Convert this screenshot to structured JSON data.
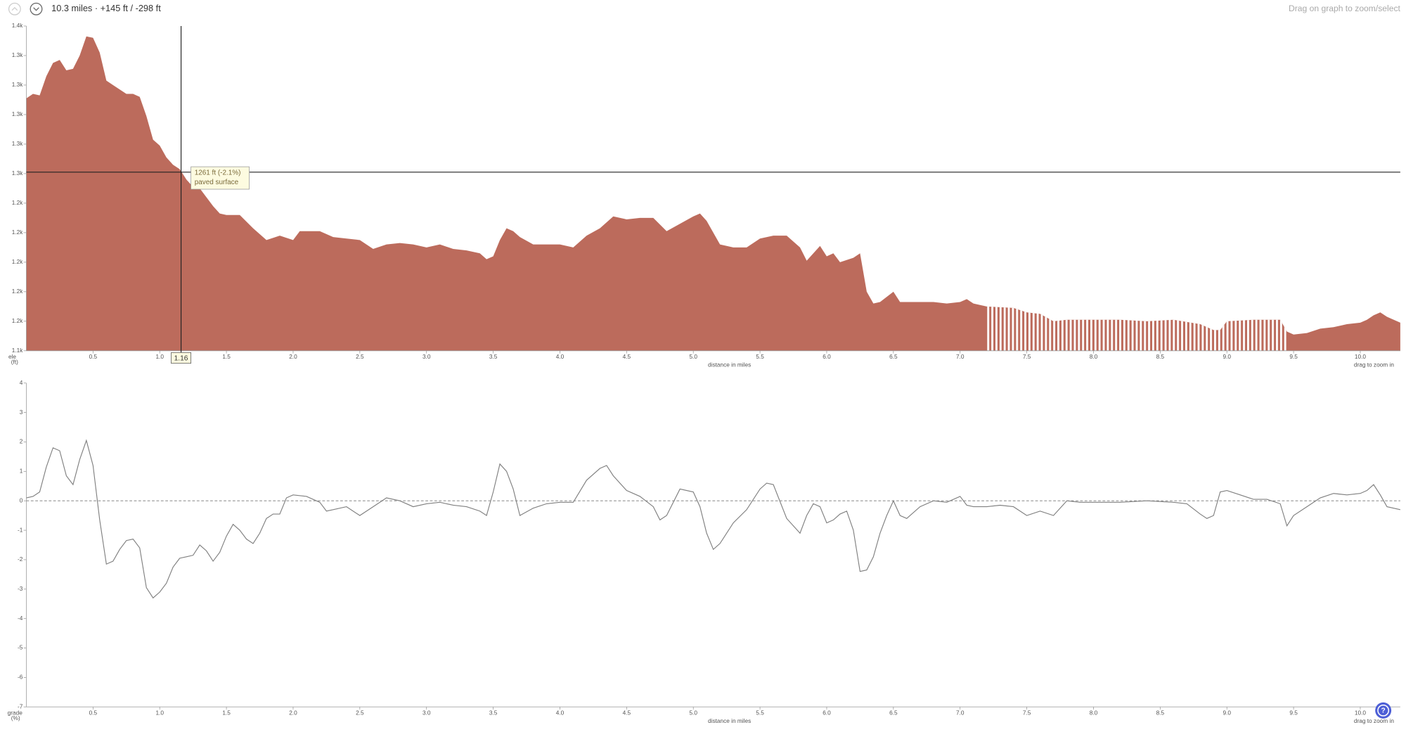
{
  "header": {
    "summary": "10.3 miles · +145 ft / -298 ft",
    "hint": "Drag on graph to zoom/select",
    "help": "?"
  },
  "chart_data": [
    {
      "type": "area",
      "y_label": [
        "ele",
        "(ft)"
      ],
      "x_label": "distance in miles",
      "zoom_hint": "drag to zoom in",
      "color": "#bc6b5c",
      "xlim": [
        0,
        10.3
      ],
      "ylim": [
        1140,
        1360
      ],
      "xticks": [
        0.5,
        {
          "value": 1,
          "label": "1.0"
        },
        1.5,
        {
          "value": 2,
          "label": "2.0"
        },
        2.5,
        {
          "value": 3,
          "label": "3.0"
        },
        3.5,
        {
          "value": 4,
          "label": "4.0"
        },
        4.5,
        {
          "value": 5,
          "label": "5.0"
        },
        5.5,
        {
          "value": 6,
          "label": "6.0"
        },
        6.5,
        {
          "value": 7,
          "label": "7.0"
        },
        7.5,
        {
          "value": 8,
          "label": "8.0"
        },
        8.5,
        {
          "value": 9,
          "label": "9.0"
        },
        9.5,
        {
          "value": 10,
          "label": "10.0"
        }
      ],
      "yticks": [
        {
          "value": 1140,
          "label": "1.1k"
        },
        {
          "value": 1160,
          "label": "1.2k"
        },
        {
          "value": 1180,
          "label": "1.2k"
        },
        {
          "value": 1200,
          "label": "1.2k"
        },
        {
          "value": 1220,
          "label": "1.2k"
        },
        {
          "value": 1240,
          "label": "1.2k"
        },
        {
          "value": 1260,
          "label": "1.3k"
        },
        {
          "value": 1280,
          "label": "1.3k"
        },
        {
          "value": 1300,
          "label": "1.3k"
        },
        {
          "value": 1320,
          "label": "1.3k"
        },
        {
          "value": 1340,
          "label": "1.3k"
        },
        {
          "value": 1360,
          "label": "1.4k"
        }
      ],
      "unpaved_range": [
        7.2,
        9.45
      ],
      "crosshair": {
        "x": 1.16,
        "y": 1261,
        "tooltip": [
          "1261 ft (-2.1%)",
          "paved surface"
        ]
      },
      "x": [
        0,
        0.05,
        0.1,
        0.15,
        0.2,
        0.25,
        0.3,
        0.35,
        0.4,
        0.45,
        0.5,
        0.55,
        0.6,
        0.65,
        0.7,
        0.75,
        0.8,
        0.85,
        0.9,
        0.95,
        1.0,
        1.05,
        1.1,
        1.15,
        1.2,
        1.25,
        1.3,
        1.35,
        1.4,
        1.45,
        1.5,
        1.6,
        1.7,
        1.8,
        1.9,
        2.0,
        2.05,
        2.2,
        2.3,
        2.4,
        2.5,
        2.6,
        2.7,
        2.8,
        2.9,
        3.0,
        3.1,
        3.2,
        3.3,
        3.4,
        3.45,
        3.5,
        3.55,
        3.6,
        3.65,
        3.7,
        3.8,
        3.9,
        4.0,
        4.1,
        4.2,
        4.3,
        4.4,
        4.5,
        4.6,
        4.7,
        4.8,
        4.9,
        5.0,
        5.05,
        5.1,
        5.2,
        5.3,
        5.4,
        5.5,
        5.6,
        5.7,
        5.8,
        5.85,
        5.9,
        5.95,
        6.0,
        6.05,
        6.1,
        6.2,
        6.25,
        6.3,
        6.35,
        6.4,
        6.5,
        6.55,
        6.7,
        6.8,
        6.9,
        7.0,
        7.05,
        7.1,
        7.2,
        7.4,
        7.5,
        7.6,
        7.7,
        7.8,
        8.0,
        8.2,
        8.4,
        8.6,
        8.8,
        8.9,
        8.95,
        9.0,
        9.2,
        9.4,
        9.45,
        9.5,
        9.6,
        9.7,
        9.8,
        9.9,
        10.0,
        10.05,
        10.1,
        10.15,
        10.2,
        10.3
      ],
      "values": [
        1311,
        1314,
        1313,
        1326,
        1335,
        1337,
        1330,
        1331,
        1340,
        1353,
        1352,
        1342,
        1323,
        1320,
        1317,
        1314,
        1314,
        1312,
        1299,
        1283,
        1279,
        1271,
        1266,
        1263,
        1256,
        1251,
        1250,
        1244,
        1238,
        1233,
        1232,
        1232,
        1223,
        1215,
        1218,
        1215,
        1221,
        1221,
        1217,
        1216,
        1215,
        1209,
        1212,
        1213,
        1212,
        1210,
        1212,
        1209,
        1208,
        1206,
        1202,
        1204,
        1215,
        1223,
        1221,
        1217,
        1212,
        1212,
        1212,
        1210,
        1218,
        1223,
        1231,
        1229,
        1230,
        1230,
        1221,
        1226,
        1231,
        1233,
        1228,
        1212,
        1210,
        1210,
        1216,
        1218,
        1218,
        1210,
        1201,
        1206,
        1211,
        1204,
        1206,
        1200,
        1203,
        1206,
        1180,
        1172,
        1173,
        1180,
        1173,
        1173,
        1173,
        1172,
        1173,
        1175,
        1172,
        1170,
        1169,
        1166,
        1165,
        1160,
        1161,
        1161,
        1161,
        1160,
        1161,
        1158,
        1154,
        1154,
        1160,
        1161,
        1161,
        1153,
        1151,
        1152,
        1155,
        1156,
        1158,
        1159,
        1161,
        1164,
        1166,
        1163,
        1159
      ]
    },
    {
      "type": "line",
      "y_label": [
        "grade",
        "(%)"
      ],
      "x_label": "distance in miles",
      "zoom_hint": "drag to zoom in",
      "color": "#808080",
      "zero_line": true,
      "xlim": [
        0,
        10.3
      ],
      "ylim": [
        -7,
        4
      ],
      "xticks": [
        0.5,
        {
          "value": 1,
          "label": "1.0"
        },
        1.5,
        {
          "value": 2,
          "label": "2.0"
        },
        2.5,
        {
          "value": 3,
          "label": "3.0"
        },
        3.5,
        {
          "value": 4,
          "label": "4.0"
        },
        4.5,
        {
          "value": 5,
          "label": "5.0"
        },
        5.5,
        {
          "value": 6,
          "label": "6.0"
        },
        6.5,
        {
          "value": 7,
          "label": "7.0"
        },
        7.5,
        {
          "value": 8,
          "label": "8.0"
        },
        8.5,
        {
          "value": 9,
          "label": "9.0"
        },
        9.5,
        {
          "value": 10,
          "label": "10.0"
        }
      ],
      "yticks": [
        4,
        3,
        2,
        1,
        0,
        -1,
        -2,
        -3,
        -4,
        -5,
        -6,
        -7
      ],
      "x": [
        0,
        0.05,
        0.1,
        0.15,
        0.2,
        0.25,
        0.3,
        0.35,
        0.4,
        0.45,
        0.5,
        0.55,
        0.6,
        0.65,
        0.7,
        0.75,
        0.8,
        0.85,
        0.9,
        0.95,
        1.0,
        1.05,
        1.1,
        1.15,
        1.2,
        1.25,
        1.3,
        1.35,
        1.4,
        1.45,
        1.5,
        1.55,
        1.6,
        1.65,
        1.7,
        1.75,
        1.8,
        1.85,
        1.9,
        1.95,
        2.0,
        2.1,
        2.2,
        2.25,
        2.3,
        2.4,
        2.5,
        2.6,
        2.7,
        2.8,
        2.9,
        3.0,
        3.1,
        3.2,
        3.3,
        3.4,
        3.45,
        3.5,
        3.55,
        3.6,
        3.65,
        3.7,
        3.8,
        3.9,
        4.0,
        4.1,
        4.2,
        4.3,
        4.35,
        4.4,
        4.5,
        4.6,
        4.7,
        4.75,
        4.8,
        4.9,
        5.0,
        5.05,
        5.1,
        5.15,
        5.2,
        5.3,
        5.4,
        5.5,
        5.55,
        5.6,
        5.7,
        5.8,
        5.85,
        5.9,
        5.95,
        6.0,
        6.05,
        6.1,
        6.15,
        6.2,
        6.25,
        6.3,
        6.35,
        6.4,
        6.45,
        6.5,
        6.55,
        6.6,
        6.7,
        6.8,
        6.9,
        7.0,
        7.05,
        7.1,
        7.2,
        7.3,
        7.4,
        7.5,
        7.6,
        7.7,
        7.8,
        7.9,
        8.0,
        8.2,
        8.4,
        8.6,
        8.7,
        8.8,
        8.85,
        8.9,
        8.95,
        9.0,
        9.1,
        9.2,
        9.3,
        9.4,
        9.45,
        9.5,
        9.6,
        9.7,
        9.8,
        9.9,
        10.0,
        10.05,
        10.1,
        10.15,
        10.2,
        10.3
      ],
      "values": [
        0.1,
        0.15,
        0.3,
        1.15,
        1.8,
        1.7,
        0.85,
        0.55,
        1.4,
        2.05,
        1.2,
        -0.65,
        -2.15,
        -2.05,
        -1.65,
        -1.35,
        -1.3,
        -1.6,
        -2.95,
        -3.3,
        -3.1,
        -2.8,
        -2.25,
        -1.95,
        -1.9,
        -1.85,
        -1.5,
        -1.7,
        -2.05,
        -1.75,
        -1.2,
        -0.8,
        -1.0,
        -1.3,
        -1.45,
        -1.1,
        -0.6,
        -0.45,
        -0.45,
        0.1,
        0.2,
        0.15,
        -0.05,
        -0.35,
        -0.3,
        -0.2,
        -0.5,
        -0.2,
        0.1,
        0,
        -0.2,
        -0.1,
        -0.05,
        -0.15,
        -0.2,
        -0.35,
        -0.5,
        0.3,
        1.25,
        1.0,
        0.4,
        -0.5,
        -0.25,
        -0.1,
        -0.05,
        -0.05,
        0.7,
        1.1,
        1.2,
        0.85,
        0.35,
        0.15,
        -0.2,
        -0.65,
        -0.5,
        0.4,
        0.3,
        -0.2,
        -1.1,
        -1.65,
        -1.45,
        -0.75,
        -0.3,
        0.4,
        0.6,
        0.55,
        -0.6,
        -1.1,
        -0.5,
        -0.1,
        -0.2,
        -0.75,
        -0.65,
        -0.45,
        -0.35,
        -1.0,
        -2.4,
        -2.35,
        -1.9,
        -1.1,
        -0.5,
        0,
        -0.5,
        -0.6,
        -0.2,
        0,
        -0.05,
        0.15,
        -0.15,
        -0.2,
        -0.2,
        -0.15,
        -0.2,
        -0.5,
        -0.35,
        -0.5,
        0,
        -0.05,
        -0.05,
        -0.05,
        0,
        -0.05,
        -0.1,
        -0.45,
        -0.6,
        -0.5,
        0.3,
        0.35,
        0.2,
        0.05,
        0.05,
        -0.1,
        -0.85,
        -0.5,
        -0.2,
        0.1,
        0.25,
        0.2,
        0.25,
        0.35,
        0.55,
        0.2,
        -0.2,
        -0.3
      ]
    }
  ]
}
